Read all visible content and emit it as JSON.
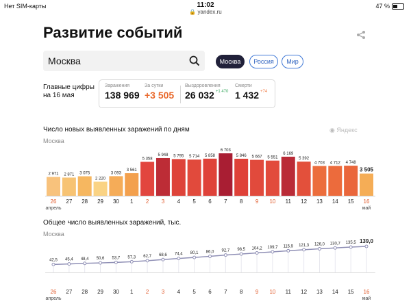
{
  "status_bar": {
    "carrier": "Нет SIM-карты",
    "time": "11:02",
    "url": "yandex.ru",
    "battery": "47 %"
  },
  "page": {
    "title": "Развитие событий"
  },
  "search": {
    "value": "Москва"
  },
  "region_chips": [
    {
      "label": "Москва",
      "active": true
    },
    {
      "label": "Россия",
      "active": false
    },
    {
      "label": "Мир",
      "active": false
    }
  ],
  "summary": {
    "label_line1": "Главные цифры",
    "label_line2": "на 16 мая",
    "stats": [
      {
        "label": "Заражения",
        "value": "138 969",
        "delta": ""
      },
      {
        "label": "За сутки",
        "value": "+3 505",
        "delta": ""
      },
      {
        "label": "Выздоровления",
        "value": "26 032",
        "delta": "+1 470"
      },
      {
        "label": "Смерти",
        "value": "1 432",
        "delta": "+74"
      }
    ]
  },
  "colors": {
    "accent_dark": "#21213a",
    "chip_blue": "#3f78d6",
    "today_orange": "#e9692c",
    "recovered_green": "#3aa860",
    "red_day": "#e15a2b",
    "line": "#8f8fb5"
  },
  "logo_text": "Яндекс",
  "chart_data": [
    {
      "type": "bar",
      "title": "Число новых выявленных заражений по дням",
      "subtitle": "Москва",
      "categories": [
        "26",
        "27",
        "28",
        "29",
        "30",
        "1",
        "2",
        "3",
        "4",
        "5",
        "6",
        "7",
        "8",
        "9",
        "10",
        "11",
        "12",
        "13",
        "14",
        "15",
        "16"
      ],
      "red_days": [
        "26",
        "2",
        "3",
        "9",
        "10",
        "16"
      ],
      "month_labels": [
        {
          "at": "26",
          "label": "апрель"
        },
        {
          "at": "16",
          "label": "май"
        }
      ],
      "values": [
        2971,
        2871,
        3075,
        2220,
        3093,
        3561,
        5358,
        5948,
        5795,
        5714,
        5858,
        6703,
        5846,
        5667,
        5551,
        6169,
        5392,
        4703,
        4712,
        4748,
        3505
      ],
      "value_labels": [
        "2 971",
        "2 871",
        "3 075",
        "2 220",
        "3 093",
        "3 561",
        "5 358",
        "5 948",
        "5 795",
        "5 714",
        "5 858",
        "6 703",
        "5 846",
        "5 667",
        "5 551",
        "6 169",
        "5 392",
        "4 703",
        "4 712",
        "4 748",
        "3 505"
      ],
      "bar_colors": [
        "#f8c27c",
        "#f7c373",
        "#f6b760",
        "#fad384",
        "#f5ac58",
        "#f3a04d",
        "#e2453e",
        "#bd2c36",
        "#de4339",
        "#e14a3c",
        "#df4239",
        "#a91e33",
        "#df4138",
        "#e14a3c",
        "#e24b3c",
        "#ba2b37",
        "#e3503b",
        "#ec6d3c",
        "#ec6b3c",
        "#ea663b",
        "#f5ad56"
      ],
      "ylim": [
        0,
        6703
      ]
    },
    {
      "type": "line",
      "title": "Общее число выявленных заражений, тыс.",
      "subtitle": "Москва",
      "categories": [
        "26",
        "27",
        "28",
        "29",
        "30",
        "1",
        "2",
        "3",
        "4",
        "5",
        "6",
        "7",
        "8",
        "9",
        "10",
        "11",
        "12",
        "13",
        "14",
        "15",
        "16"
      ],
      "red_days": [
        "26",
        "2",
        "3",
        "9",
        "10",
        "16"
      ],
      "month_labels": [
        {
          "at": "26",
          "label": "апрель"
        },
        {
          "at": "16",
          "label": "май"
        }
      ],
      "values": [
        42.5,
        45.4,
        48.4,
        50.6,
        53.7,
        57.3,
        62.7,
        68.6,
        74.4,
        80.1,
        86.0,
        92.7,
        98.5,
        104.2,
        109.7,
        115.9,
        121.3,
        126.0,
        130.7,
        135.5,
        139.0
      ],
      "value_labels": [
        "42,5",
        "45,4",
        "48,4",
        "50,6",
        "53,7",
        "57,3",
        "62,7",
        "68,6",
        "74,4",
        "80,1",
        "86,0",
        "92,7",
        "98,5",
        "104,2",
        "109,7",
        "115,9",
        "121,3",
        "126,0",
        "130,7",
        "135,5",
        "139,0"
      ],
      "ylim": [
        0,
        139.0
      ]
    }
  ]
}
